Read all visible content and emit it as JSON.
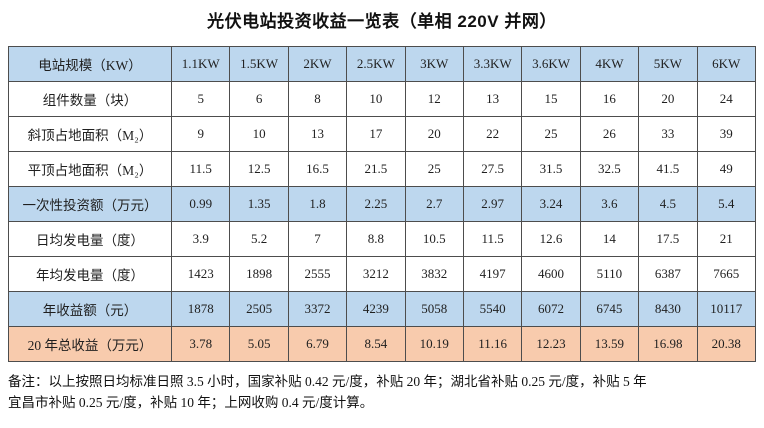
{
  "title": "光伏电站投资收益一览表（单相 220V 并网）",
  "colors": {
    "header_fill": "#BDD7EE",
    "total_fill": "#F8CBAD",
    "border": "#4d4d4d"
  },
  "table": {
    "rows": [
      {
        "label": "电站规模（KW）",
        "fill": "blue",
        "values": [
          "1.1KW",
          "1.5KW",
          "2KW",
          "2.5KW",
          "3KW",
          "3.3KW",
          "3.6KW",
          "4KW",
          "5KW",
          "6KW"
        ]
      },
      {
        "label": "组件数量（块）",
        "fill": "white",
        "values": [
          "5",
          "6",
          "8",
          "10",
          "12",
          "13",
          "15",
          "16",
          "20",
          "24"
        ]
      },
      {
        "label": "斜顶占地面积（M₂）",
        "fill": "white",
        "values": [
          "9",
          "10",
          "13",
          "17",
          "20",
          "22",
          "25",
          "26",
          "33",
          "39"
        ]
      },
      {
        "label": "平顶占地面积（M₂）",
        "fill": "white",
        "values": [
          "11.5",
          "12.5",
          "16.5",
          "21.5",
          "25",
          "27.5",
          "31.5",
          "32.5",
          "41.5",
          "49"
        ]
      },
      {
        "label": "一次性投资额（万元）",
        "fill": "blue",
        "values": [
          "0.99",
          "1.35",
          "1.8",
          "2.25",
          "2.7",
          "2.97",
          "3.24",
          "3.6",
          "4.5",
          "5.4"
        ]
      },
      {
        "label": "日均发电量（度）",
        "fill": "white",
        "values": [
          "3.9",
          "5.2",
          "7",
          "8.8",
          "10.5",
          "11.5",
          "12.6",
          "14",
          "17.5",
          "21"
        ]
      },
      {
        "label": "年均发电量（度）",
        "fill": "white",
        "values": [
          "1423",
          "1898",
          "2555",
          "3212",
          "3832",
          "4197",
          "4600",
          "5110",
          "6387",
          "7665"
        ]
      },
      {
        "label": "年收益额（元）",
        "fill": "blue",
        "values": [
          "1878",
          "2505",
          "3372",
          "4239",
          "5058",
          "5540",
          "6072",
          "6745",
          "8430",
          "10117"
        ]
      },
      {
        "label": "20 年总收益（万元）",
        "fill": "orange",
        "values": [
          "3.78",
          "5.05",
          "6.79",
          "8.54",
          "10.19",
          "11.16",
          "12.23",
          "13.59",
          "16.98",
          "20.38"
        ]
      }
    ]
  },
  "footnote": {
    "lines": [
      "备注：以上按照日均标准日照 3.5 小时，国家补贴 0.42 元/度，补贴 20 年；湖北省补贴 0.25 元/度，补贴 5 年",
      "宜昌市补贴 0.25 元/度，补贴 10 年；上网收购 0.4 元/度计算。"
    ]
  }
}
